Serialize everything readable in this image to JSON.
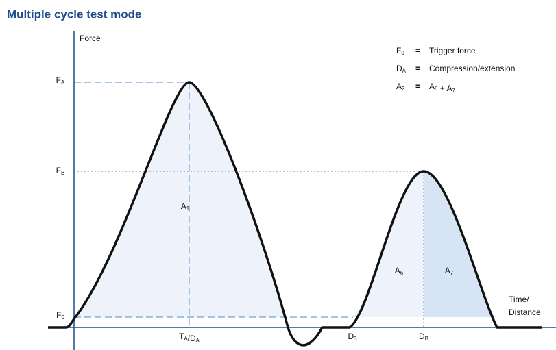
{
  "title": "Multiple cycle test mode",
  "axes": {
    "y_label": "Force",
    "x_label_lines": [
      "Time/",
      "Distance"
    ]
  },
  "y_labels": [
    [
      {
        "main": "F",
        "sub": "A"
      }
    ],
    [
      {
        "main": "F",
        "sub": "B"
      }
    ],
    [
      {
        "main": "F",
        "sub": "0"
      }
    ]
  ],
  "x_labels": [
    [
      {
        "main": "T",
        "sub": "A"
      },
      {
        "main": "/D",
        "sub": "A"
      }
    ],
    [
      {
        "main": "D",
        "sub": "3"
      }
    ],
    [
      {
        "main": "D",
        "sub": "B"
      }
    ]
  ],
  "areas": [
    [
      {
        "main": "A",
        "sub": "1"
      }
    ],
    [
      {
        "main": "A",
        "sub": "6"
      }
    ],
    [
      {
        "main": "A",
        "sub": "7"
      }
    ]
  ],
  "legend": [
    {
      "term": [
        {
          "main": "F",
          "sub": "0"
        }
      ],
      "sep": "=",
      "definition": [
        {
          "main": "Trigger force"
        }
      ]
    },
    {
      "term": [
        {
          "main": "D",
          "sub": "A"
        }
      ],
      "sep": "=",
      "definition": [
        {
          "main": "Compression/extension"
        }
      ]
    },
    {
      "term": [
        {
          "main": "A",
          "sub": "2"
        }
      ],
      "sep": "=",
      "definition": [
        {
          "main": "A",
          "sub": "6"
        },
        {
          "main": " + A",
          "sub": "7"
        }
      ]
    }
  ]
}
